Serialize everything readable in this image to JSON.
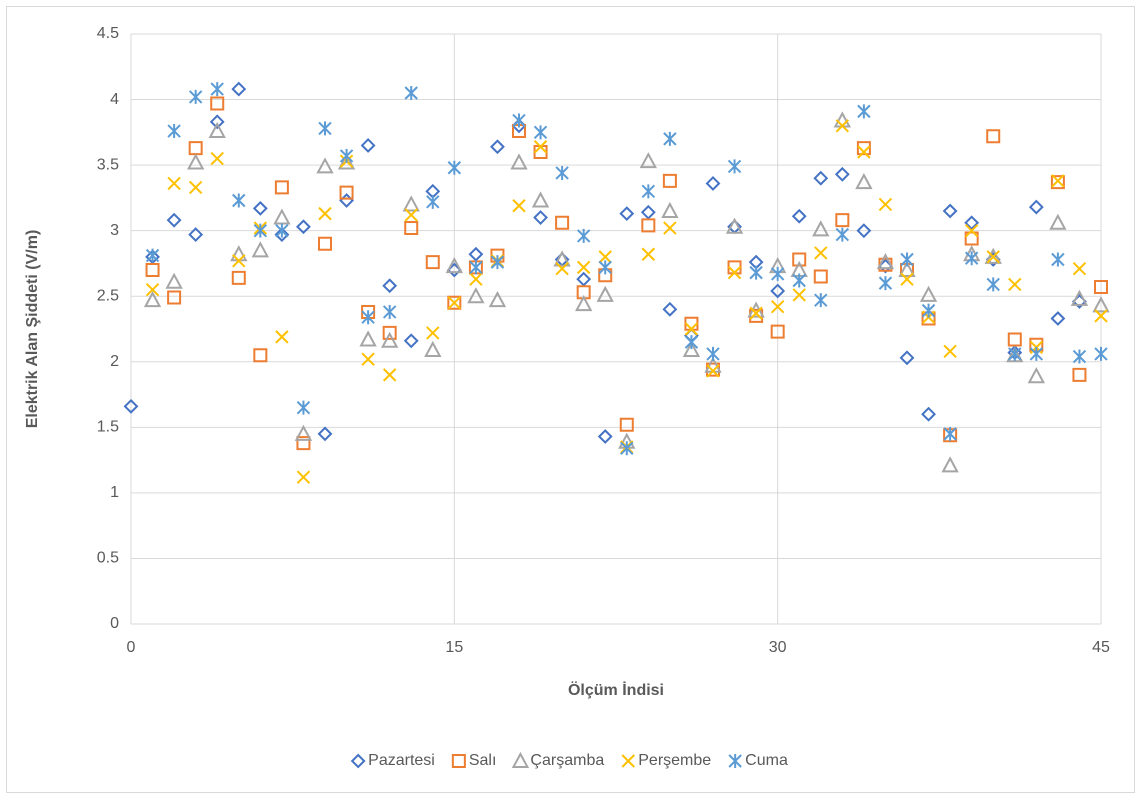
{
  "chart_data": {
    "type": "scatter",
    "xlabel": "Ölçüm İndisi",
    "ylabel": "Elektrik Alan Şiddeti (V/m)",
    "xlim": [
      0,
      45
    ],
    "xticks": [
      0,
      15,
      30,
      45
    ],
    "ylim": [
      0,
      4.5
    ],
    "yticks": [
      0,
      0.5,
      1,
      1.5,
      2,
      2.5,
      3,
      3.5,
      4,
      4.5
    ],
    "grid": true,
    "legend": "bottom",
    "series": [
      {
        "name": "Pazartesi",
        "color": "#4472c4",
        "marker": "diamond",
        "x": [
          0,
          1,
          2,
          3,
          4,
          5,
          6,
          7,
          8,
          9,
          10,
          11,
          12,
          13,
          14,
          15,
          16,
          17,
          18,
          19,
          20,
          21,
          22,
          23,
          24,
          25,
          26,
          27,
          28,
          29,
          30,
          31,
          32,
          33,
          34,
          35,
          36,
          37,
          38,
          39,
          40,
          41,
          42,
          43,
          44
        ],
        "values": [
          1.66,
          2.8,
          3.08,
          2.97,
          3.83,
          4.08,
          3.17,
          2.97,
          3.03,
          1.45,
          3.23,
          3.65,
          2.58,
          2.16,
          3.3,
          2.7,
          2.82,
          3.64,
          3.8,
          3.1,
          2.78,
          2.63,
          1.43,
          3.13,
          3.14,
          2.4,
          2.2,
          3.36,
          3.03,
          2.76,
          2.54,
          3.11,
          3.4,
          3.43,
          3.0,
          2.73,
          2.03,
          1.6,
          3.15,
          3.06,
          2.78,
          2.07,
          3.18,
          2.33,
          2.46
        ]
      },
      {
        "name": "Salı",
        "color": "#ed7d31",
        "marker": "square",
        "x": [
          1,
          2,
          3,
          4,
          5,
          6,
          7,
          8,
          9,
          10,
          11,
          12,
          13,
          14,
          15,
          16,
          17,
          18,
          19,
          20,
          21,
          22,
          23,
          24,
          25,
          26,
          27,
          28,
          29,
          30,
          31,
          32,
          33,
          34,
          35,
          36,
          37,
          38,
          39,
          40,
          41,
          42,
          43,
          44,
          45
        ],
        "values": [
          2.7,
          2.49,
          3.63,
          3.97,
          2.64,
          2.05,
          3.33,
          1.38,
          2.9,
          3.29,
          2.38,
          2.22,
          3.02,
          2.76,
          2.45,
          2.72,
          2.81,
          3.76,
          3.6,
          3.06,
          2.53,
          2.66,
          1.52,
          3.04,
          3.38,
          2.29,
          1.94,
          2.72,
          2.35,
          2.23,
          2.78,
          2.65,
          3.08,
          3.63,
          2.74,
          2.7,
          2.33,
          1.44,
          2.94,
          3.72,
          2.17,
          2.13,
          3.37,
          1.9,
          2.57
        ]
      },
      {
        "name": "Çarşamba",
        "color": "#a5a5a5",
        "marker": "triangle",
        "x": [
          1,
          2,
          3,
          4,
          5,
          6,
          7,
          8,
          9,
          10,
          11,
          12,
          13,
          14,
          15,
          16,
          17,
          18,
          19,
          20,
          21,
          22,
          23,
          24,
          25,
          26,
          27,
          28,
          29,
          30,
          31,
          32,
          33,
          34,
          35,
          36,
          37,
          38,
          39,
          40,
          41,
          42,
          43,
          44,
          45
        ],
        "values": [
          2.47,
          2.61,
          3.52,
          3.76,
          2.82,
          2.85,
          3.1,
          1.45,
          3.49,
          3.52,
          2.17,
          2.16,
          3.2,
          2.09,
          2.73,
          2.5,
          2.47,
          3.52,
          3.23,
          2.78,
          2.44,
          2.51,
          1.39,
          3.53,
          3.15,
          2.09,
          1.97,
          3.03,
          2.39,
          2.73,
          2.7,
          3.01,
          3.84,
          3.37,
          2.76,
          2.7,
          2.51,
          1.21,
          2.82,
          2.8,
          2.05,
          1.89,
          3.06,
          2.48,
          2.43
        ]
      },
      {
        "name": "Perşembe",
        "color": "#ffc000",
        "marker": "x",
        "x": [
          1,
          2,
          3,
          4,
          5,
          6,
          7,
          8,
          9,
          10,
          11,
          12,
          13,
          14,
          15,
          16,
          17,
          18,
          19,
          20,
          21,
          22,
          23,
          24,
          25,
          26,
          27,
          28,
          29,
          30,
          31,
          32,
          33,
          34,
          35,
          36,
          37,
          38,
          39,
          40,
          41,
          42,
          43,
          44,
          45
        ],
        "values": [
          2.55,
          3.36,
          3.33,
          3.55,
          2.77,
          3.02,
          2.19,
          1.12,
          3.13,
          3.53,
          2.02,
          1.9,
          3.12,
          2.22,
          2.45,
          2.63,
          2.77,
          3.19,
          3.64,
          2.71,
          2.72,
          2.8,
          1.35,
          2.82,
          3.02,
          2.25,
          1.93,
          2.68,
          2.37,
          2.42,
          2.51,
          2.83,
          3.8,
          3.6,
          3.2,
          2.63,
          2.34,
          2.08,
          3.0,
          2.8,
          2.59,
          2.11,
          3.38,
          2.71,
          2.35
        ]
      },
      {
        "name": "Cuma",
        "color": "#5b9bd5",
        "marker": "star",
        "x": [
          1,
          2,
          3,
          4,
          5,
          6,
          7,
          8,
          9,
          10,
          11,
          12,
          13,
          14,
          15,
          16,
          17,
          18,
          19,
          20,
          21,
          22,
          23,
          24,
          25,
          26,
          27,
          28,
          29,
          30,
          31,
          32,
          33,
          34,
          35,
          36,
          37,
          38,
          39,
          40,
          41,
          42,
          43,
          44,
          45
        ],
        "values": [
          2.81,
          3.76,
          4.02,
          4.08,
          3.23,
          3.0,
          3.0,
          1.65,
          3.78,
          3.57,
          2.34,
          2.38,
          4.05,
          3.22,
          3.48,
          2.72,
          2.76,
          3.84,
          3.75,
          3.44,
          2.96,
          2.72,
          1.34,
          3.3,
          3.7,
          2.15,
          2.06,
          3.49,
          2.68,
          2.67,
          2.62,
          2.47,
          2.97,
          3.91,
          2.6,
          2.78,
          2.39,
          1.45,
          2.79,
          2.59,
          2.06,
          2.06,
          2.78,
          2.04,
          2.06
        ]
      }
    ]
  }
}
